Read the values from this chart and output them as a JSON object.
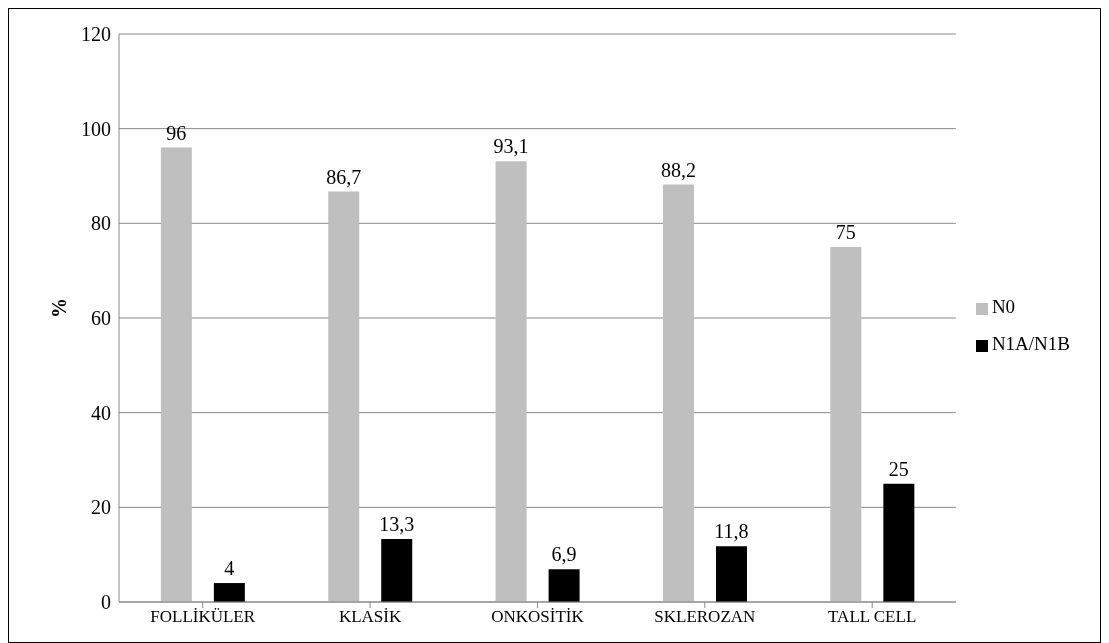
{
  "chart_data": {
    "type": "bar",
    "ylabel": "%",
    "categories": [
      "FOLLİKÜLER",
      "KLASİK",
      "ONKOSİTİK",
      "SKLEROZAN",
      "TALL CELL"
    ],
    "series": [
      {
        "name": "N0",
        "color": "#bfbfbf",
        "values": [
          96,
          86.7,
          93.1,
          88.2,
          75
        ],
        "value_labels": [
          "96",
          "86,7",
          "93,1",
          "88,2",
          "75"
        ]
      },
      {
        "name": "N1A/N1B",
        "color": "#000000",
        "values": [
          4,
          13.3,
          6.9,
          11.8,
          25
        ],
        "value_labels": [
          "4",
          "13,3",
          "6,9",
          "11,8",
          "25"
        ]
      }
    ],
    "ylim": [
      0,
      120
    ],
    "yticks": [
      0,
      20,
      40,
      60,
      80,
      100,
      120
    ],
    "grid": "y",
    "legend": "right"
  }
}
